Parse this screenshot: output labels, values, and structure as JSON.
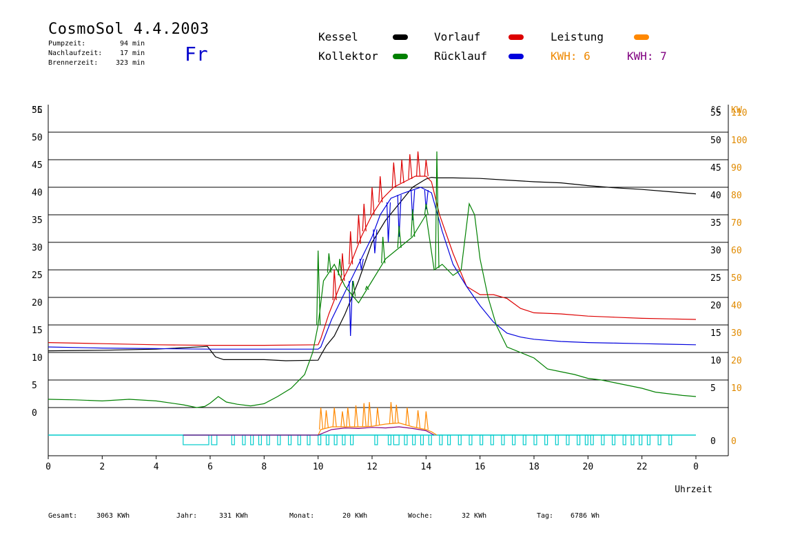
{
  "header": {
    "title": "CosmoSol 4.4.2003",
    "weekday": "Fr",
    "stats": [
      {
        "label": "Pumpzeit:",
        "value": "94 min"
      },
      {
        "label": "Nachlaufzeit:",
        "value": "17 min"
      },
      {
        "label": "Brennerzeit:",
        "value": "323 min"
      }
    ]
  },
  "legend": {
    "kessel": {
      "label": "Kessel",
      "color": "#000000"
    },
    "vorlauf": {
      "label": "Vorlauf",
      "color": "#dd0000"
    },
    "leistung": {
      "label": "Leistung",
      "color": "#ff8800"
    },
    "kollektor": {
      "label": "Kollektor",
      "color": "#008000"
    },
    "ruecklauf": {
      "label": "Rücklauf",
      "color": "#0000dd"
    },
    "kwh1": {
      "label": "KWH: 6",
      "color": "#ee8800"
    },
    "kwh2": {
      "label": "KWH: 7",
      "color": "#800080"
    }
  },
  "footer": [
    {
      "label": "Gesamt:",
      "value": "3063 KWh"
    },
    {
      "label": "Jahr:",
      "value": "331 KWh"
    },
    {
      "label": "Monat:",
      "value": "20 KWh"
    },
    {
      "label": "Woche:",
      "value": "32 KWh"
    },
    {
      "label": "Tag:",
      "value": "6786 Wh"
    }
  ],
  "chart_data": {
    "type": "line",
    "xlabel": "Uhrzeit",
    "ylabel_left": "°C",
    "ylabel_right_units": [
      "°C",
      "KW"
    ],
    "xlim": [
      0,
      24
    ],
    "ylim": [
      0,
      55
    ],
    "kw_lim": [
      0,
      110
    ],
    "x_ticks": [
      "0",
      "2",
      "4",
      "6",
      "8",
      "10",
      "12",
      "14",
      "16",
      "18",
      "20",
      "22",
      "0"
    ],
    "y_ticks": [
      "0",
      "5",
      "10",
      "15",
      "20",
      "25",
      "30",
      "35",
      "40",
      "45",
      "50",
      "55"
    ],
    "kw_ticks": [
      "0",
      "10",
      "20",
      "30",
      "40",
      "50",
      "60",
      "70",
      "80",
      "90",
      "100",
      "110"
    ],
    "grid": true,
    "series": [
      {
        "name": "Kessel",
        "color": "#000000",
        "x": [
          0,
          2,
          4,
          5.9,
          6.2,
          6.5,
          8,
          8.8,
          10,
          10.1,
          10.3,
          10.6,
          11,
          11.5,
          12,
          12.5,
          13,
          13.5,
          14,
          14.2,
          14.4,
          15,
          16,
          17,
          18,
          19,
          20,
          21,
          22,
          23,
          24
        ],
        "y": [
          15.3,
          15.4,
          15.6,
          16.1,
          14.2,
          13.7,
          13.7,
          13.5,
          13.6,
          14.5,
          16.2,
          18,
          22,
          28,
          35,
          39,
          42,
          45,
          46.5,
          46.8,
          46.7,
          46.7,
          46.6,
          46.3,
          46.0,
          45.8,
          45.3,
          44.9,
          44.6,
          44.2,
          43.8
        ]
      },
      {
        "name": "Vorlauf",
        "color": "#dd0000",
        "x": [
          0,
          2,
          4,
          6,
          8,
          10,
          10.1,
          10.4,
          10.8,
          11.2,
          11.6,
          12,
          12.4,
          12.8,
          13.2,
          13.6,
          14,
          14.2,
          14.5,
          15,
          15.5,
          16,
          16.5,
          17,
          17.5,
          18,
          19,
          20,
          21,
          22,
          23,
          24
        ],
        "y": [
          16.8,
          16.6,
          16.4,
          16.3,
          16.3,
          16.4,
          17.5,
          22,
          27,
          31,
          36,
          40,
          43,
          45,
          46,
          47,
          47,
          46,
          40,
          33,
          27,
          25.5,
          25.5,
          24.8,
          23,
          22.2,
          22,
          21.6,
          21.4,
          21.2,
          21.1,
          21.0
        ],
        "spikes": [
          [
            10.6,
            30
          ],
          [
            10.9,
            33
          ],
          [
            11.2,
            37
          ],
          [
            11.5,
            40
          ],
          [
            11.7,
            42
          ],
          [
            12.0,
            45
          ],
          [
            12.3,
            47
          ],
          [
            12.8,
            49.5
          ],
          [
            13.1,
            50
          ],
          [
            13.4,
            51
          ],
          [
            13.7,
            51.5
          ],
          [
            14.0,
            50
          ]
        ]
      },
      {
        "name": "Rücklauf",
        "color": "#0000dd",
        "x": [
          0,
          2,
          4,
          6,
          8,
          10,
          10.1,
          10.5,
          11,
          11.5,
          12,
          12.3,
          12.7,
          13.2,
          13.8,
          14.2,
          14.6,
          15,
          15.5,
          16,
          16.5,
          17,
          17.5,
          18,
          19,
          20,
          21,
          22,
          23,
          24
        ],
        "y": [
          16.0,
          15.8,
          15.7,
          15.6,
          15.6,
          15.6,
          16,
          21,
          26,
          31,
          36,
          40,
          43,
          44,
          45,
          44,
          37,
          31,
          27,
          23.5,
          20.5,
          18.5,
          17.8,
          17.4,
          17.0,
          16.8,
          16.7,
          16.6,
          16.5,
          16.4
        ],
        "spikes": [
          [
            11.2,
            18
          ],
          [
            11.6,
            30
          ],
          [
            12.1,
            33
          ],
          [
            12.6,
            35
          ],
          [
            13.0,
            36
          ],
          [
            13.5,
            39
          ],
          [
            14.0,
            41
          ]
        ]
      },
      {
        "name": "Kollektor",
        "color": "#008000",
        "x": [
          0,
          1,
          2,
          3,
          4,
          5,
          5.5,
          5.8,
          6,
          6.3,
          6.6,
          7,
          7.5,
          8,
          8.5,
          9,
          9.5,
          9.8,
          10,
          10.2,
          10.6,
          11,
          11.5,
          12,
          12.5,
          13,
          13.5,
          14,
          14.3,
          14.6,
          15,
          15.3,
          15.6,
          15.8,
          16,
          16.3,
          16.6,
          17,
          17.5,
          18,
          18.5,
          19,
          19.5,
          20,
          20.5,
          21,
          21.5,
          22,
          22.5,
          23,
          23.5,
          24
        ],
        "y": [
          6.5,
          6.4,
          6.2,
          6.5,
          6.2,
          5.5,
          5.0,
          5.2,
          5.8,
          7.0,
          6.0,
          5.6,
          5.3,
          5.7,
          7.0,
          8.5,
          11,
          15,
          20,
          28,
          31,
          27,
          24,
          28,
          32,
          34,
          36,
          40,
          30,
          31,
          29,
          30,
          42,
          40,
          32,
          25,
          20,
          16,
          15,
          14,
          12,
          11.5,
          11,
          10.3,
          10,
          9.5,
          9,
          8.5,
          7.8,
          7.5,
          7.2,
          7.0
        ],
        "spikes": [
          [
            10.0,
            33.5
          ],
          [
            10.4,
            33
          ],
          [
            10.8,
            32
          ],
          [
            11.3,
            28
          ],
          [
            11.8,
            27
          ],
          [
            12.4,
            36
          ],
          [
            13.0,
            38
          ],
          [
            13.5,
            41
          ],
          [
            14.0,
            42
          ],
          [
            14.4,
            51.5
          ]
        ]
      },
      {
        "name": "Leistung",
        "color": "#ff8800",
        "x": [
          10,
          10.1,
          10.5,
          11,
          11.5,
          12,
          12.5,
          13,
          13.5,
          14,
          14.2,
          14.4
        ],
        "y": [
          0,
          1,
          1.5,
          1.5,
          1.5,
          1.6,
          2,
          2.2,
          1.5,
          1,
          0.6,
          0
        ],
        "spikes": [
          [
            10.1,
            5
          ],
          [
            10.3,
            4.5
          ],
          [
            10.6,
            5
          ],
          [
            10.9,
            4.3
          ],
          [
            11.1,
            5
          ],
          [
            11.4,
            5.4
          ],
          [
            11.7,
            5.8
          ],
          [
            11.9,
            6
          ],
          [
            12.2,
            5
          ],
          [
            12.7,
            6
          ],
          [
            12.9,
            5.5
          ],
          [
            13.3,
            5
          ],
          [
            13.7,
            4.5
          ],
          [
            14.0,
            4.3
          ]
        ]
      },
      {
        "name": "KWH: 7",
        "color": "#800080",
        "x": [
          5,
          6,
          10,
          10.5,
          11,
          11.5,
          12,
          12.5,
          13,
          13.5,
          14,
          14.3
        ],
        "y": [
          0,
          0,
          0,
          1,
          1.3,
          1.2,
          1.4,
          1.3,
          1.5,
          1.2,
          0.8,
          0
        ]
      }
    ],
    "pump_on_intervals": [
      [
        5.0,
        5.95
      ],
      [
        6.05,
        6.25
      ],
      [
        6.8,
        6.9
      ],
      [
        7.2,
        7.3
      ],
      [
        7.5,
        7.6
      ],
      [
        7.8,
        7.9
      ],
      [
        8.1,
        8.2
      ],
      [
        8.5,
        8.6
      ],
      [
        8.9,
        9.0
      ],
      [
        9.25,
        9.35
      ],
      [
        9.6,
        9.7
      ],
      [
        10.0,
        10.1
      ],
      [
        10.3,
        10.4
      ],
      [
        10.6,
        10.7
      ],
      [
        10.9,
        11.0
      ],
      [
        11.2,
        11.3
      ],
      [
        12.1,
        12.2
      ],
      [
        12.6,
        12.7
      ],
      [
        12.8,
        13.0
      ],
      [
        13.2,
        13.3
      ],
      [
        13.5,
        13.6
      ],
      [
        13.8,
        13.9
      ],
      [
        14.1,
        14.2
      ],
      [
        14.5,
        14.6
      ],
      [
        14.8,
        14.9
      ],
      [
        15.2,
        15.3
      ],
      [
        15.6,
        15.7
      ],
      [
        16.0,
        16.1
      ],
      [
        16.4,
        16.5
      ],
      [
        16.8,
        16.9
      ],
      [
        17.2,
        17.3
      ],
      [
        17.6,
        17.7
      ],
      [
        18.0,
        18.1
      ],
      [
        18.4,
        18.5
      ],
      [
        18.8,
        18.9
      ],
      [
        19.2,
        19.3
      ],
      [
        19.6,
        19.7
      ],
      [
        19.9,
        20.0
      ],
      [
        20.1,
        20.2
      ],
      [
        20.5,
        20.6
      ],
      [
        20.9,
        21.0
      ],
      [
        21.3,
        21.4
      ],
      [
        21.6,
        21.7
      ],
      [
        21.9,
        22.0
      ],
      [
        22.2,
        22.3
      ],
      [
        22.6,
        22.7
      ],
      [
        23.0,
        23.1
      ]
    ]
  }
}
